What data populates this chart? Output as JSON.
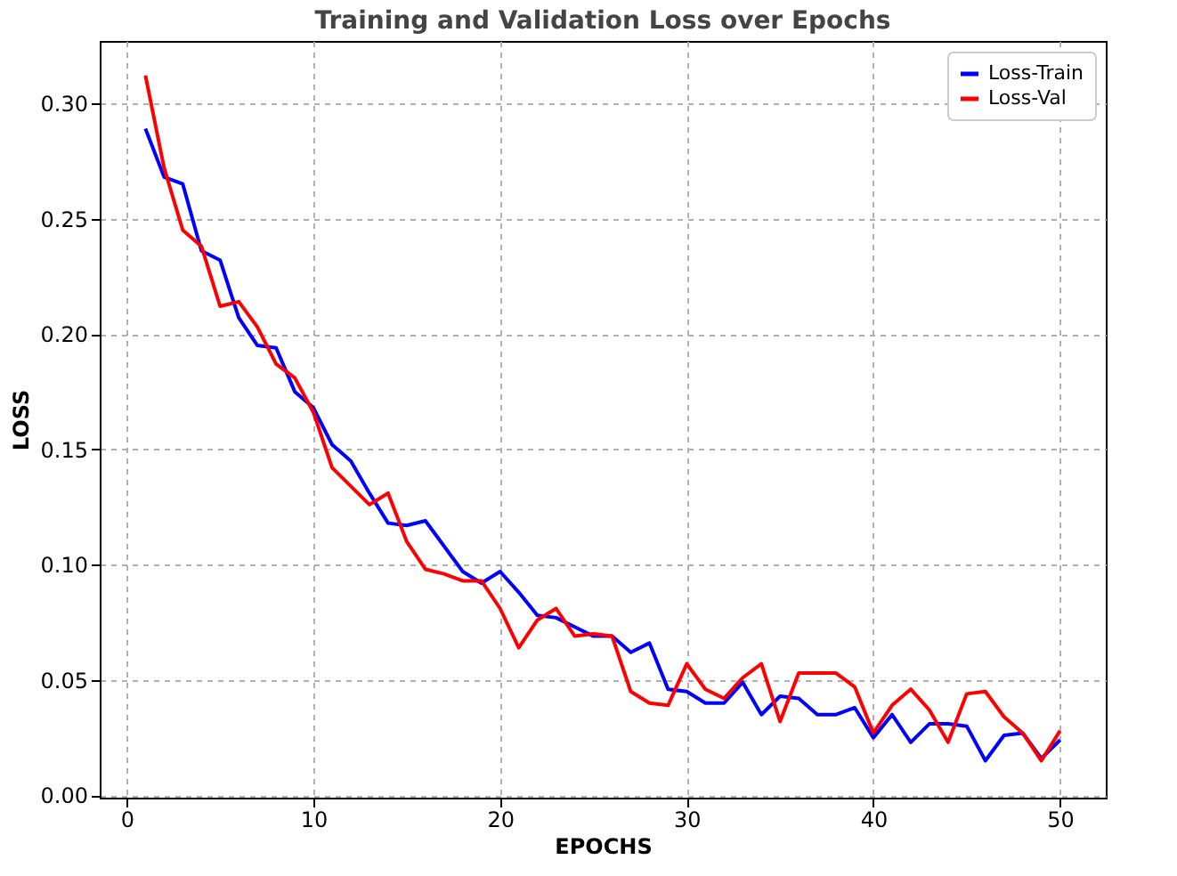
{
  "chart_data": {
    "type": "line",
    "title": "Training and Validation Loss over Epochs",
    "xlabel": "EPOCHS",
    "ylabel": "LOSS",
    "x": [
      1,
      2,
      3,
      4,
      5,
      6,
      7,
      8,
      9,
      10,
      11,
      12,
      13,
      14,
      15,
      16,
      17,
      18,
      19,
      20,
      21,
      22,
      23,
      24,
      25,
      26,
      27,
      28,
      29,
      30,
      31,
      32,
      33,
      34,
      35,
      36,
      37,
      38,
      39,
      40,
      41,
      42,
      43,
      44,
      45,
      46,
      47,
      48,
      49,
      50
    ],
    "series": [
      {
        "name": "Loss-Train",
        "color": "#0000ff",
        "values": [
          0.289,
          0.268,
          0.265,
          0.236,
          0.232,
          0.207,
          0.195,
          0.194,
          0.175,
          0.168,
          0.152,
          0.145,
          0.131,
          0.118,
          0.117,
          0.119,
          0.108,
          0.097,
          0.092,
          0.097,
          0.088,
          0.078,
          0.077,
          0.073,
          0.069,
          0.069,
          0.062,
          0.066,
          0.046,
          0.045,
          0.04,
          0.04,
          0.049,
          0.035,
          0.043,
          0.042,
          0.035,
          0.035,
          0.038,
          0.025,
          0.035,
          0.023,
          0.031,
          0.031,
          0.03,
          0.015,
          0.026,
          0.027,
          0.016,
          0.024
        ]
      },
      {
        "name": "Loss-Val",
        "color": "#ff0000",
        "values": [
          0.312,
          0.272,
          0.245,
          0.238,
          0.212,
          0.214,
          0.203,
          0.187,
          0.181,
          0.166,
          0.142,
          0.134,
          0.126,
          0.131,
          0.11,
          0.098,
          0.096,
          0.093,
          0.093,
          0.081,
          0.064,
          0.076,
          0.081,
          0.069,
          0.07,
          0.069,
          0.045,
          0.04,
          0.039,
          0.057,
          0.046,
          0.042,
          0.051,
          0.057,
          0.032,
          0.053,
          0.053,
          0.053,
          0.047,
          0.027,
          0.039,
          0.046,
          0.037,
          0.023,
          0.044,
          0.045,
          0.034,
          0.027,
          0.015,
          0.028
        ]
      }
    ],
    "xlim": [
      -1.45,
      52.45
    ],
    "xticks": [
      0,
      10,
      20,
      30,
      40,
      50
    ],
    "ylim": [
      -0.001,
      0.327
    ],
    "yticks": [
      {
        "value": 0,
        "label": "0.00"
      },
      {
        "value": 0.05,
        "label": "0.05"
      },
      {
        "value": 0.1,
        "label": "0.10"
      },
      {
        "value": 0.15,
        "label": "0.15"
      },
      {
        "value": 0.2,
        "label": "0.20"
      },
      {
        "value": 0.25,
        "label": "0.25"
      },
      {
        "value": 0.3,
        "label": "0.30"
      }
    ],
    "grid": true,
    "legend": "top right",
    "line_style": "solid",
    "marker": "none"
  }
}
